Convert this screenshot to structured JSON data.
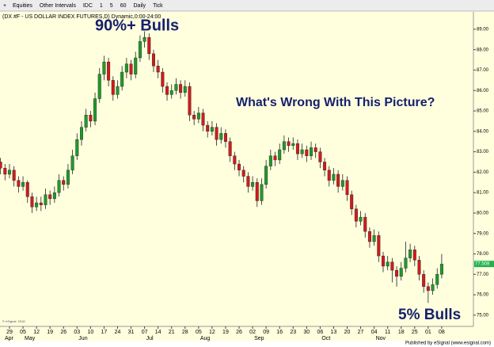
{
  "toolbar": {
    "items": [
      "Equities",
      "Other Intervals",
      "IDC",
      "1",
      "5",
      "60",
      "Daily",
      "Tick"
    ]
  },
  "chart_data": {
    "type": "candlestick",
    "title": "(DX #F - US DOLLAR INDEX FUTURES,D) Dynamic,0:00-24:00",
    "annotations": [
      "90%+ Bulls",
      "What's Wrong With This Picture?",
      "5% Bulls"
    ],
    "copyright": "© eSignal, 2018",
    "footer": "Published by eSignal (www.esignal.com)",
    "up_color": "#1f9a2a",
    "down_color": "#d11b1b",
    "x_ticks": [
      "29",
      "05",
      "12",
      "19",
      "26",
      "03",
      "10",
      "17",
      "24",
      "31",
      "07",
      "14",
      "21",
      "28",
      "05",
      "12",
      "19",
      "26",
      "02",
      "09",
      "16",
      "23",
      "30",
      "06",
      "13",
      "20",
      "27",
      "04",
      "11",
      "18",
      "25",
      "01",
      "08"
    ],
    "months": [
      "Apr",
      "May",
      "Jun",
      "Jul",
      "Aug",
      "Sep",
      "Oct",
      "Nov"
    ],
    "ylim": [
      74.45,
      89.85
    ],
    "yticks": [
      {
        "value": 75,
        "label": "75.00"
      },
      {
        "value": 76,
        "label": "76.00"
      },
      {
        "value": 77,
        "label": "77.00"
      },
      {
        "value": 78,
        "label": "78.00"
      },
      {
        "value": 79,
        "label": "79.00"
      },
      {
        "value": 80,
        "label": "80.00"
      },
      {
        "value": 81,
        "label": "81.00"
      },
      {
        "value": 82,
        "label": "82.00"
      },
      {
        "value": 83,
        "label": "83.00"
      },
      {
        "value": 84,
        "label": "84.00"
      },
      {
        "value": 85,
        "label": "85.00"
      },
      {
        "value": 86,
        "label": "86.00"
      },
      {
        "value": 87,
        "label": "87.00"
      },
      {
        "value": 88,
        "label": "88.00"
      },
      {
        "value": 89,
        "label": "89.00"
      }
    ],
    "last_value": 77.508,
    "ohlc": [
      [
        82.5,
        82.7,
        81.9,
        82.2
      ],
      [
        82.2,
        82.4,
        81.6,
        81.9
      ],
      [
        81.9,
        82.4,
        81.7,
        82.1
      ],
      [
        82.1,
        82.3,
        81.3,
        81.6
      ],
      [
        81.6,
        81.8,
        81.0,
        81.3
      ],
      [
        81.3,
        81.8,
        81.1,
        81.5
      ],
      [
        81.5,
        81.6,
        80.5,
        80.8
      ],
      [
        80.8,
        81.0,
        80.0,
        80.3
      ],
      [
        80.3,
        80.8,
        80.1,
        80.5
      ],
      [
        80.5,
        80.8,
        80.1,
        80.4
      ],
      [
        80.4,
        81.2,
        80.2,
        80.9
      ],
      [
        80.9,
        81.1,
        80.4,
        80.7
      ],
      [
        80.7,
        81.3,
        80.5,
        81.0
      ],
      [
        81.0,
        81.9,
        80.8,
        81.6
      ],
      [
        81.6,
        81.8,
        81.1,
        81.4
      ],
      [
        81.4,
        82.4,
        81.2,
        82.1
      ],
      [
        82.1,
        83.1,
        81.9,
        82.8
      ],
      [
        82.8,
        83.9,
        82.6,
        83.6
      ],
      [
        83.6,
        84.5,
        83.3,
        84.2
      ],
      [
        84.2,
        85.1,
        84.0,
        84.8
      ],
      [
        84.8,
        85.0,
        84.2,
        84.5
      ],
      [
        84.5,
        85.9,
        84.3,
        85.6
      ],
      [
        85.6,
        87.1,
        85.4,
        86.8
      ],
      [
        86.8,
        87.7,
        86.5,
        87.4
      ],
      [
        87.4,
        87.6,
        86.2,
        86.5
      ],
      [
        86.5,
        86.7,
        85.5,
        85.8
      ],
      [
        85.8,
        86.5,
        85.6,
        86.2
      ],
      [
        86.2,
        87.2,
        86.0,
        86.9
      ],
      [
        86.9,
        87.6,
        86.6,
        87.3
      ],
      [
        87.3,
        87.5,
        86.5,
        86.8
      ],
      [
        86.8,
        87.9,
        86.6,
        87.6
      ],
      [
        87.6,
        88.7,
        87.4,
        88.4
      ],
      [
        88.4,
        88.9,
        88.1,
        88.6
      ],
      [
        88.6,
        88.8,
        87.5,
        87.8
      ],
      [
        87.8,
        88.0,
        86.9,
        87.2
      ],
      [
        87.2,
        87.5,
        86.6,
        86.9
      ],
      [
        86.9,
        87.1,
        85.9,
        86.2
      ],
      [
        86.2,
        86.4,
        85.5,
        85.8
      ],
      [
        85.8,
        86.3,
        85.6,
        86.0
      ],
      [
        86.0,
        86.6,
        85.8,
        86.3
      ],
      [
        86.3,
        86.5,
        85.6,
        85.9
      ],
      [
        85.9,
        86.5,
        85.7,
        86.2
      ],
      [
        86.2,
        86.4,
        84.5,
        84.8
      ],
      [
        84.8,
        85.0,
        84.3,
        84.6
      ],
      [
        84.6,
        85.2,
        84.4,
        84.9
      ],
      [
        84.9,
        85.1,
        84.0,
        84.3
      ],
      [
        84.3,
        84.5,
        83.7,
        84.0
      ],
      [
        84.0,
        84.5,
        83.8,
        84.2
      ],
      [
        84.2,
        84.4,
        83.3,
        83.6
      ],
      [
        83.6,
        84.2,
        83.4,
        83.9
      ],
      [
        83.9,
        84.1,
        83.2,
        83.5
      ],
      [
        83.5,
        83.7,
        82.5,
        82.8
      ],
      [
        82.8,
        83.0,
        82.1,
        82.4
      ],
      [
        82.4,
        82.6,
        81.8,
        82.1
      ],
      [
        82.1,
        82.3,
        81.5,
        81.8
      ],
      [
        81.8,
        82.0,
        81.0,
        81.3
      ],
      [
        81.3,
        81.8,
        81.1,
        81.5
      ],
      [
        81.5,
        81.7,
        80.3,
        80.6
      ],
      [
        80.6,
        81.7,
        80.4,
        81.4
      ],
      [
        81.4,
        82.6,
        81.2,
        82.3
      ],
      [
        82.3,
        83.1,
        82.1,
        82.8
      ],
      [
        82.8,
        83.0,
        82.3,
        82.6
      ],
      [
        82.6,
        83.4,
        82.4,
        83.1
      ],
      [
        83.1,
        83.8,
        82.9,
        83.5
      ],
      [
        83.5,
        83.7,
        83.0,
        83.3
      ],
      [
        83.3,
        83.7,
        83.1,
        83.4
      ],
      [
        83.4,
        83.6,
        82.6,
        82.9
      ],
      [
        82.9,
        83.4,
        82.7,
        83.1
      ],
      [
        83.1,
        83.3,
        82.5,
        82.8
      ],
      [
        82.8,
        83.5,
        82.6,
        83.2
      ],
      [
        83.2,
        83.4,
        82.7,
        83.0
      ],
      [
        83.0,
        83.2,
        82.2,
        82.5
      ],
      [
        82.5,
        82.7,
        81.8,
        82.1
      ],
      [
        82.1,
        82.3,
        81.3,
        81.6
      ],
      [
        81.6,
        82.2,
        81.4,
        81.9
      ],
      [
        81.9,
        82.1,
        81.0,
        81.3
      ],
      [
        81.3,
        81.9,
        81.1,
        81.6
      ],
      [
        81.6,
        81.8,
        80.6,
        80.9
      ],
      [
        80.9,
        81.1,
        79.9,
        80.2
      ],
      [
        80.2,
        80.4,
        79.3,
        79.6
      ],
      [
        79.6,
        80.1,
        79.4,
        79.8
      ],
      [
        79.8,
        80.0,
        78.8,
        79.1
      ],
      [
        79.1,
        79.3,
        78.3,
        78.6
      ],
      [
        78.6,
        79.2,
        78.4,
        78.9
      ],
      [
        78.9,
        79.1,
        77.6,
        77.9
      ],
      [
        77.9,
        78.1,
        77.1,
        77.4
      ],
      [
        77.4,
        77.9,
        77.2,
        77.6
      ],
      [
        77.6,
        77.8,
        76.6,
        77.2
      ],
      [
        77.2,
        77.4,
        76.4,
        76.9
      ],
      [
        76.9,
        77.6,
        76.7,
        77.3
      ],
      [
        77.3,
        78.6,
        77.1,
        77.8
      ],
      [
        77.8,
        78.5,
        77.6,
        78.2
      ],
      [
        78.2,
        78.4,
        77.4,
        77.7
      ],
      [
        77.7,
        77.9,
        76.7,
        77.0
      ],
      [
        77.0,
        77.2,
        76.1,
        76.4
      ],
      [
        76.4,
        76.6,
        75.6,
        76.2
      ],
      [
        76.2,
        76.8,
        76.0,
        76.5
      ],
      [
        76.5,
        77.3,
        76.3,
        77.0
      ],
      [
        77.0,
        78.0,
        76.8,
        77.5
      ]
    ]
  }
}
